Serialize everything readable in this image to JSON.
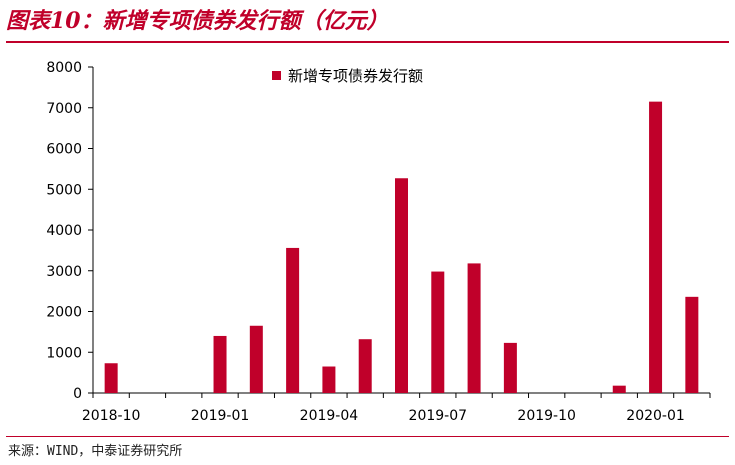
{
  "title": "图表10：新增专项债券发行额（亿元）",
  "source": "来源：WIND，中泰证券研究所",
  "colors": {
    "accent": "#c0002a",
    "bar": "#c0002a"
  },
  "chart_data": {
    "type": "bar",
    "x": [
      "2018-10",
      "2018-11",
      "2018-12",
      "2019-01",
      "2019-02",
      "2019-03",
      "2019-04",
      "2019-05",
      "2019-06",
      "2019-07",
      "2019-08",
      "2019-09",
      "2019-10",
      "2019-11",
      "2019-12",
      "2020-01",
      "2020-02"
    ],
    "series": [
      {
        "name": "新增专项债券发行额",
        "values": [
          730,
          0,
          0,
          1400,
          1650,
          3560,
          650,
          1320,
          5270,
          2980,
          3180,
          1230,
          0,
          0,
          180,
          7150,
          2360
        ]
      }
    ],
    "x_tick_labels": [
      "2018-10",
      "2019-01",
      "2019-04",
      "2019-07",
      "2019-10",
      "2020-01"
    ],
    "y_ticks": [
      0,
      1000,
      2000,
      3000,
      4000,
      5000,
      6000,
      7000,
      8000
    ],
    "ylim": [
      0,
      8000
    ],
    "grid": false,
    "legend_position": "top-center"
  }
}
